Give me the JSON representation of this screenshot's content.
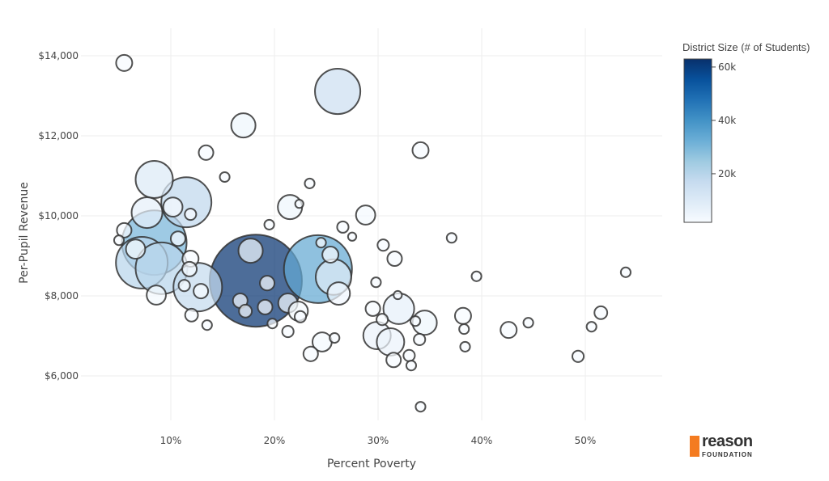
{
  "chart_data": {
    "type": "scatter",
    "variant": "bubble",
    "xlabel": "Percent Poverty",
    "ylabel": "Per-Pupil Revenue",
    "x_ticks": [
      "10%",
      "20%",
      "30%",
      "40%",
      "50%"
    ],
    "x_tick_values": [
      10,
      20,
      30,
      40,
      50
    ],
    "y_ticks": [
      "$6,000",
      "$8,000",
      "$10,000",
      "$12,000",
      "$14,000"
    ],
    "y_tick_values": [
      6000,
      8000,
      10000,
      12000,
      14000
    ],
    "xlim": [
      1.5,
      57
    ],
    "ylim": [
      4900,
      14700
    ],
    "grid": true,
    "colorbar": {
      "title": "District Size (# of Students)",
      "ticks": [
        "20k",
        "40k",
        "60k"
      ],
      "tick_values": [
        20000,
        40000,
        60000
      ],
      "range": [
        1800,
        63000
      ],
      "colorscale": [
        "#f7fbff",
        "#deebf7",
        "#c6dbef",
        "#9ecae1",
        "#6baed6",
        "#4292c6",
        "#2171b5",
        "#08519c",
        "#08306b"
      ],
      "placement": "right"
    },
    "marker_outline": "#333333",
    "points": [
      [
        5.5,
        13820,
        1900
      ],
      [
        26.1,
        13110,
        15000
      ],
      [
        17.0,
        12260,
        4300
      ],
      [
        13.4,
        11580,
        1550
      ],
      [
        34.1,
        11640,
        1900
      ],
      [
        15.2,
        10970,
        700
      ],
      [
        8.4,
        10910,
        10100
      ],
      [
        11.5,
        10340,
        18300
      ],
      [
        23.4,
        10810,
        700
      ],
      [
        21.5,
        10220,
        4300
      ],
      [
        22.4,
        10300,
        500
      ],
      [
        7.7,
        10080,
        6900
      ],
      [
        10.2,
        10220,
        2700
      ],
      [
        11.9,
        10040,
        950
      ],
      [
        28.8,
        10020,
        2700
      ],
      [
        26.6,
        9720,
        950
      ],
      [
        27.5,
        9480,
        500
      ],
      [
        5.5,
        9640,
        1550
      ],
      [
        5.0,
        9390,
        700
      ],
      [
        8.4,
        9330,
        30500
      ],
      [
        7.2,
        8830,
        19500
      ],
      [
        9.1,
        8690,
        19500
      ],
      [
        10.7,
        9430,
        1550
      ],
      [
        11.9,
        8930,
        1900
      ],
      [
        12.6,
        8220,
        17200
      ],
      [
        18.2,
        8380,
        62000
      ],
      [
        24.2,
        8670,
        33700
      ],
      [
        17.7,
        9130,
        4300
      ],
      [
        25.7,
        8470,
        9200
      ],
      [
        25.4,
        9030,
        1900
      ],
      [
        24.5,
        9330,
        700
      ],
      [
        30.5,
        9270,
        950
      ],
      [
        31.6,
        8930,
        1550
      ],
      [
        19.3,
        8320,
        1550
      ],
      [
        19.5,
        9780,
        700
      ],
      [
        26.2,
        8060,
        3700
      ],
      [
        21.3,
        7820,
        2700
      ],
      [
        22.3,
        7620,
        2700
      ],
      [
        16.7,
        7880,
        1550
      ],
      [
        17.2,
        7620,
        1200
      ],
      [
        19.1,
        7720,
        1550
      ],
      [
        29.8,
        8340,
        700
      ],
      [
        31.9,
        8020,
        500
      ],
      [
        32.0,
        7680,
        6900
      ],
      [
        29.5,
        7680,
        1550
      ],
      [
        30.4,
        7410,
        950
      ],
      [
        34.5,
        7330,
        4300
      ],
      [
        34.0,
        6910,
        950
      ],
      [
        33.6,
        7370,
        700
      ],
      [
        29.9,
        7010,
        5500
      ],
      [
        31.2,
        6850,
        5500
      ],
      [
        31.5,
        6400,
        1550
      ],
      [
        33.0,
        6510,
        950
      ],
      [
        33.2,
        6260,
        700
      ],
      [
        34.1,
        5230,
        700
      ],
      [
        24.6,
        6850,
        2700
      ],
      [
        23.5,
        6550,
        1550
      ],
      [
        25.8,
        6950,
        700
      ],
      [
        21.3,
        7110,
        950
      ],
      [
        19.8,
        7310,
        700
      ],
      [
        13.5,
        7270,
        700
      ],
      [
        12.0,
        7520,
        1200
      ],
      [
        37.1,
        9450,
        700
      ],
      [
        39.5,
        8490,
        700
      ],
      [
        53.9,
        8590,
        700
      ],
      [
        38.2,
        7500,
        1900
      ],
      [
        38.3,
        7170,
        700
      ],
      [
        38.4,
        6730,
        700
      ],
      [
        42.6,
        7150,
        1900
      ],
      [
        44.5,
        7330,
        700
      ],
      [
        50.6,
        7230,
        700
      ],
      [
        51.5,
        7580,
        1200
      ],
      [
        49.3,
        6490,
        950
      ],
      [
        8.6,
        8020,
        2700
      ],
      [
        11.3,
        8260,
        950
      ],
      [
        12.9,
        8120,
        1550
      ],
      [
        6.6,
        9170,
        2700
      ],
      [
        11.8,
        8670,
        1550
      ],
      [
        22.5,
        7480,
        950
      ]
    ],
    "point_fields": [
      "percent_poverty",
      "per_pupil_revenue",
      "district_size"
    ]
  },
  "logo": {
    "line1": "reason",
    "line2": "FOUNDATION",
    "color": "#f47b20"
  }
}
